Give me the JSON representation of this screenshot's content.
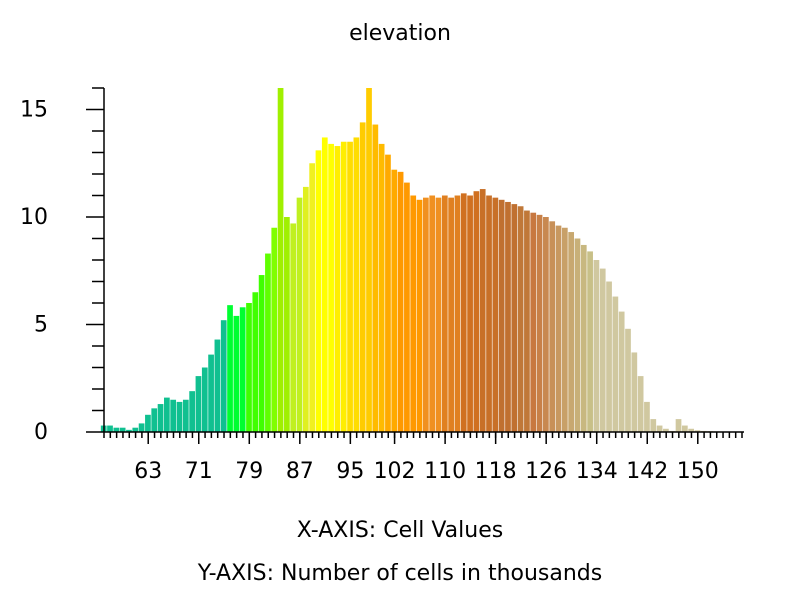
{
  "chart_data": {
    "type": "bar",
    "title": "elevation",
    "xlabel": "X-AXIS: Cell Values",
    "ylabel": "Y-AXIS: Number of cells in thousands",
    "xlim": [
      56,
      157
    ],
    "ylim": [
      0,
      16
    ],
    "x_ticks": [
      63,
      71,
      79,
      87,
      95,
      102,
      110,
      118,
      126,
      134,
      142,
      150
    ],
    "y_ticks": [
      0,
      5,
      10,
      15
    ],
    "x": [
      56,
      57,
      58,
      59,
      60,
      61,
      62,
      63,
      64,
      65,
      66,
      67,
      68,
      69,
      70,
      71,
      72,
      73,
      74,
      75,
      76,
      77,
      78,
      79,
      80,
      81,
      82,
      83,
      84,
      85,
      86,
      87,
      88,
      89,
      90,
      91,
      92,
      93,
      94,
      95,
      96,
      97,
      98,
      99,
      100,
      101,
      102,
      103,
      104,
      105,
      106,
      107,
      108,
      109,
      110,
      111,
      112,
      113,
      114,
      115,
      116,
      117,
      118,
      119,
      120,
      121,
      122,
      123,
      124,
      125,
      126,
      127,
      128,
      129,
      130,
      131,
      132,
      133,
      134,
      135,
      136,
      137,
      138,
      139,
      140,
      141,
      142,
      143,
      144,
      145,
      146,
      147,
      148,
      149,
      150,
      151,
      152,
      153,
      154,
      155,
      156
    ],
    "values": [
      0.3,
      0.3,
      0.2,
      0.2,
      0.1,
      0.2,
      0.4,
      0.8,
      1.1,
      1.3,
      1.6,
      1.5,
      1.4,
      1.5,
      1.9,
      2.6,
      3.0,
      3.6,
      4.3,
      5.2,
      5.9,
      5.4,
      5.8,
      6.0,
      6.5,
      7.3,
      8.3,
      9.5,
      16.0,
      10.0,
      9.7,
      10.9,
      11.4,
      12.5,
      13.1,
      13.7,
      13.4,
      13.3,
      13.5,
      13.5,
      13.7,
      14.4,
      16.0,
      14.3,
      13.4,
      12.9,
      12.2,
      12.1,
      11.6,
      11.0,
      10.8,
      10.9,
      11.0,
      10.9,
      11.0,
      10.9,
      11.0,
      11.1,
      11.0,
      11.2,
      11.3,
      11.0,
      10.9,
      10.8,
      10.7,
      10.6,
      10.5,
      10.3,
      10.2,
      10.1,
      10.0,
      9.8,
      9.6,
      9.5,
      9.3,
      9.0,
      8.7,
      8.4,
      8.0,
      7.6,
      7.0,
      6.3,
      5.6,
      4.8,
      3.7,
      2.6,
      1.4,
      0.6,
      0.3,
      0.15,
      0.05,
      0.6,
      0.3,
      0.15,
      0.08,
      0.05,
      0.04,
      0.03,
      0.02,
      0.01,
      0.01
    ],
    "bar_colors": [
      "#10c090",
      "#10c090",
      "#10c090",
      "#10c090",
      "#10c090",
      "#10c090",
      "#10c090",
      "#10c090",
      "#10c090",
      "#10c090",
      "#10c090",
      "#10c090",
      "#10c090",
      "#10c090",
      "#10c090",
      "#10c090",
      "#10c090",
      "#10c090",
      "#10c090",
      "#10c090",
      "#00ff30",
      "#00ff30",
      "#00ff30",
      "#40ff00",
      "#40ff00",
      "#40ff00",
      "#60ff00",
      "#80ff00",
      "#a0f000",
      "#a0f000",
      "#c0f020",
      "#c0f020",
      "#e0f020",
      "#f0f020",
      "#ffff00",
      "#ffff00",
      "#ffff00",
      "#ffee00",
      "#ffee00",
      "#ffdd00",
      "#ffdd00",
      "#ffcc00",
      "#ffcc00",
      "#ffbb00",
      "#ffbb00",
      "#ffaa00",
      "#ffaa00",
      "#ff9900",
      "#ff9900",
      "#ff9900",
      "#ff9900",
      "#f09020",
      "#f09020",
      "#f09020",
      "#e08020",
      "#e08020",
      "#e08020",
      "#d07020",
      "#d07020",
      "#d07020",
      "#c87028",
      "#c87028",
      "#c87028",
      "#c07030",
      "#c07030",
      "#c07030",
      "#c07838",
      "#c07838",
      "#c87840",
      "#c88048",
      "#c88850",
      "#c89058",
      "#c89860",
      "#c8a068",
      "#c8a870",
      "#c8b078",
      "#c8b880",
      "#c8c088",
      "#d0c8a0",
      "#d0c8a0",
      "#d0c8a0",
      "#d0c8a0",
      "#d0c8a0",
      "#d0c8a0",
      "#d0c8a0",
      "#d0c8a0",
      "#d0c8a0",
      "#d0c8a0",
      "#d0c8a0",
      "#d0c8a0",
      "#d0c8a0",
      "#d0c8a0",
      "#d0c8a0",
      "#d0c8a0",
      "#d0c8a0",
      "#d0c8a0",
      "#d0c8a0",
      "#d0c8a0",
      "#d0c8a0",
      "#d0c8a0",
      "#d0c8a0"
    ],
    "grid": false,
    "legend": "none"
  }
}
